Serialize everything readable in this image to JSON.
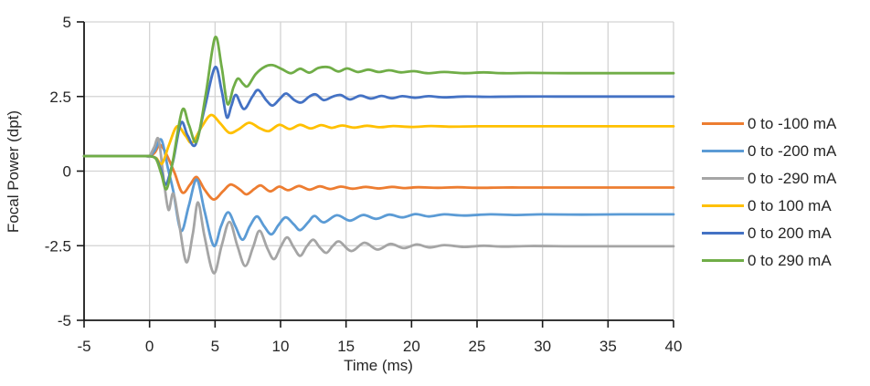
{
  "styles": {
    "background": "#ffffff",
    "grid_color": "#d3d3d3",
    "axis_color": "#1a1a1a",
    "text_color": "#262626"
  },
  "chart_data": {
    "type": "line",
    "title": "",
    "xlabel": "Time (ms)",
    "ylabel": "Focal Power (dpt)",
    "xlim": [
      -5,
      40
    ],
    "ylim": [
      -5,
      5
    ],
    "xticks": [
      -5,
      0,
      5,
      10,
      15,
      20,
      25,
      30,
      35,
      40
    ],
    "xtick_labels": [
      "-5",
      "0",
      "5",
      "10",
      "15",
      "20",
      "25",
      "30",
      "35",
      "40"
    ],
    "yticks": [
      5,
      2.5,
      0,
      -2.5,
      -5
    ],
    "ytick_labels": [
      "5",
      "2.5",
      "0",
      "-2.5",
      "-5"
    ],
    "grid": true,
    "legend_position": "right",
    "initial_value_dpt": 0.5,
    "step_time_ms": 0,
    "series": [
      {
        "name": "0 to -100 mA",
        "color": "#ED7D31",
        "final_value_dpt": -0.55,
        "points": [
          [
            -5,
            0.5
          ],
          [
            -2,
            0.5
          ],
          [
            -0.3,
            0.5
          ],
          [
            0,
            0.5
          ],
          [
            0.4,
            0.62
          ],
          [
            0.8,
            0.88
          ],
          [
            1.3,
            0.55
          ],
          [
            1.9,
            -0.05
          ],
          [
            2.5,
            -0.72
          ],
          [
            3.1,
            -0.45
          ],
          [
            3.6,
            -0.2
          ],
          [
            4.2,
            -0.62
          ],
          [
            4.9,
            -0.95
          ],
          [
            5.6,
            -0.68
          ],
          [
            6.2,
            -0.45
          ],
          [
            6.9,
            -0.62
          ],
          [
            7.4,
            -0.78
          ],
          [
            8,
            -0.6
          ],
          [
            8.5,
            -0.48
          ],
          [
            9.2,
            -0.68
          ],
          [
            9.9,
            -0.52
          ],
          [
            10.6,
            -0.64
          ],
          [
            11.4,
            -0.5
          ],
          [
            12.2,
            -0.62
          ],
          [
            13,
            -0.51
          ],
          [
            13.8,
            -0.6
          ],
          [
            14.6,
            -0.52
          ],
          [
            15.5,
            -0.59
          ],
          [
            16.5,
            -0.53
          ],
          [
            17.5,
            -0.58
          ],
          [
            18.5,
            -0.53
          ],
          [
            19.5,
            -0.57
          ],
          [
            20.5,
            -0.54
          ],
          [
            22,
            -0.56
          ],
          [
            23.5,
            -0.54
          ],
          [
            25,
            -0.56
          ],
          [
            27,
            -0.55
          ],
          [
            29,
            -0.55
          ],
          [
            32,
            -0.55
          ],
          [
            35,
            -0.55
          ],
          [
            38,
            -0.55
          ],
          [
            40,
            -0.55
          ]
        ]
      },
      {
        "name": "0 to -200 mA",
        "color": "#5B9BD5",
        "final_value_dpt": -1.45,
        "points": [
          [
            -5,
            0.5
          ],
          [
            -2,
            0.5
          ],
          [
            -0.3,
            0.5
          ],
          [
            0,
            0.5
          ],
          [
            0.4,
            0.7
          ],
          [
            0.9,
            1.05
          ],
          [
            1.4,
            0.1
          ],
          [
            1.8,
            -0.65
          ],
          [
            2.4,
            -2
          ],
          [
            3,
            -1.15
          ],
          [
            3.6,
            -0.28
          ],
          [
            4.2,
            -1.35
          ],
          [
            4.9,
            -2.5
          ],
          [
            5.45,
            -1.85
          ],
          [
            6,
            -1.38
          ],
          [
            6.55,
            -1.85
          ],
          [
            7.1,
            -2.3
          ],
          [
            7.65,
            -1.85
          ],
          [
            8.2,
            -1.52
          ],
          [
            8.75,
            -1.85
          ],
          [
            9.3,
            -2.12
          ],
          [
            9.85,
            -1.8
          ],
          [
            10.4,
            -1.55
          ],
          [
            11,
            -1.78
          ],
          [
            11.5,
            -1.98
          ],
          [
            12.1,
            -1.72
          ],
          [
            12.6,
            -1.5
          ],
          [
            13.3,
            -1.72
          ],
          [
            14.3,
            -1.48
          ],
          [
            15.3,
            -1.66
          ],
          [
            16.3,
            -1.47
          ],
          [
            17.3,
            -1.6
          ],
          [
            18.3,
            -1.46
          ],
          [
            19.3,
            -1.55
          ],
          [
            20.3,
            -1.44
          ],
          [
            21.3,
            -1.52
          ],
          [
            22.5,
            -1.45
          ],
          [
            24,
            -1.49
          ],
          [
            26,
            -1.45
          ],
          [
            28,
            -1.47
          ],
          [
            30,
            -1.45
          ],
          [
            33,
            -1.46
          ],
          [
            36,
            -1.45
          ],
          [
            40,
            -1.45
          ]
        ]
      },
      {
        "name": "0 to -290 mA",
        "color": "#A5A5A5",
        "final_value_dpt": -2.52,
        "points": [
          [
            -5,
            0.5
          ],
          [
            -2,
            0.5
          ],
          [
            -0.3,
            0.5
          ],
          [
            0,
            0.5
          ],
          [
            0.35,
            0.8
          ],
          [
            0.7,
            1.05
          ],
          [
            1.1,
            -0.35
          ],
          [
            1.45,
            -1.3
          ],
          [
            1.8,
            -0.75
          ],
          [
            2.2,
            -1.6
          ],
          [
            2.8,
            -3.05
          ],
          [
            3.3,
            -2.1
          ],
          [
            3.7,
            -1.05
          ],
          [
            4.2,
            -2.2
          ],
          [
            4.9,
            -3.42
          ],
          [
            5.5,
            -2.5
          ],
          [
            6.1,
            -1.7
          ],
          [
            6.7,
            -2.5
          ],
          [
            7.3,
            -3.18
          ],
          [
            7.9,
            -2.55
          ],
          [
            8.4,
            -2
          ],
          [
            9,
            -2.6
          ],
          [
            9.5,
            -2.95
          ],
          [
            10,
            -2.55
          ],
          [
            10.5,
            -2.22
          ],
          [
            11,
            -2.55
          ],
          [
            11.5,
            -2.84
          ],
          [
            12,
            -2.52
          ],
          [
            12.5,
            -2.3
          ],
          [
            13,
            -2.56
          ],
          [
            13.5,
            -2.74
          ],
          [
            14,
            -2.5
          ],
          [
            14.5,
            -2.36
          ],
          [
            15.4,
            -2.68
          ],
          [
            16.4,
            -2.4
          ],
          [
            17.4,
            -2.63
          ],
          [
            18.4,
            -2.44
          ],
          [
            19.4,
            -2.58
          ],
          [
            20.4,
            -2.46
          ],
          [
            21.4,
            -2.56
          ],
          [
            22.5,
            -2.48
          ],
          [
            24,
            -2.54
          ],
          [
            25.5,
            -2.5
          ],
          [
            27,
            -2.53
          ],
          [
            29,
            -2.51
          ],
          [
            32,
            -2.52
          ],
          [
            35,
            -2.52
          ],
          [
            38,
            -2.52
          ],
          [
            40,
            -2.52
          ]
        ]
      },
      {
        "name": "0 to 100 mA",
        "color": "#FFC000",
        "final_value_dpt": 1.5,
        "points": [
          [
            -5,
            0.5
          ],
          [
            -2,
            0.5
          ],
          [
            -0.3,
            0.5
          ],
          [
            0,
            0.5
          ],
          [
            0.5,
            0.44
          ],
          [
            0.95,
            0.25
          ],
          [
            1.5,
            0.9
          ],
          [
            2.1,
            1.5
          ],
          [
            2.75,
            1.18
          ],
          [
            3.25,
            0.95
          ],
          [
            4,
            1.5
          ],
          [
            4.7,
            1.88
          ],
          [
            5.4,
            1.6
          ],
          [
            6.1,
            1.28
          ],
          [
            6.8,
            1.4
          ],
          [
            7.6,
            1.62
          ],
          [
            8.4,
            1.44
          ],
          [
            9.1,
            1.34
          ],
          [
            9.9,
            1.55
          ],
          [
            10.7,
            1.41
          ],
          [
            11.5,
            1.55
          ],
          [
            12.3,
            1.43
          ],
          [
            13.1,
            1.54
          ],
          [
            13.9,
            1.45
          ],
          [
            14.7,
            1.53
          ],
          [
            15.6,
            1.46
          ],
          [
            16.6,
            1.52
          ],
          [
            17.6,
            1.47
          ],
          [
            18.6,
            1.51
          ],
          [
            20,
            1.48
          ],
          [
            21.5,
            1.51
          ],
          [
            23,
            1.49
          ],
          [
            25,
            1.5
          ],
          [
            28,
            1.5
          ],
          [
            31,
            1.5
          ],
          [
            34,
            1.5
          ],
          [
            37,
            1.5
          ],
          [
            40,
            1.5
          ]
        ]
      },
      {
        "name": "0 to 200 mA",
        "color": "#4472C4",
        "final_value_dpt": 2.5,
        "points": [
          [
            -5,
            0.5
          ],
          [
            -2,
            0.5
          ],
          [
            -0.3,
            0.5
          ],
          [
            0,
            0.5
          ],
          [
            0.5,
            0.42
          ],
          [
            0.9,
            0
          ],
          [
            1.25,
            -0.45
          ],
          [
            1.8,
            0.35
          ],
          [
            2.4,
            1.62
          ],
          [
            2.9,
            1.2
          ],
          [
            3.5,
            0.88
          ],
          [
            4.2,
            2.1
          ],
          [
            5,
            3.48
          ],
          [
            5.5,
            2.7
          ],
          [
            5.9,
            1.8
          ],
          [
            6.25,
            2.2
          ],
          [
            6.6,
            2.55
          ],
          [
            7.2,
            2.08
          ],
          [
            7.85,
            2.5
          ],
          [
            8.3,
            2.72
          ],
          [
            8.9,
            2.38
          ],
          [
            9.4,
            2.2
          ],
          [
            10,
            2.45
          ],
          [
            10.45,
            2.6
          ],
          [
            11.05,
            2.38
          ],
          [
            11.6,
            2.3
          ],
          [
            12.2,
            2.5
          ],
          [
            12.7,
            2.57
          ],
          [
            13.3,
            2.38
          ],
          [
            14,
            2.5
          ],
          [
            14.6,
            2.55
          ],
          [
            15.3,
            2.4
          ],
          [
            16.1,
            2.53
          ],
          [
            16.9,
            2.43
          ],
          [
            17.7,
            2.52
          ],
          [
            18.5,
            2.44
          ],
          [
            19.3,
            2.51
          ],
          [
            20.3,
            2.46
          ],
          [
            21.3,
            2.51
          ],
          [
            22.5,
            2.47
          ],
          [
            24,
            2.5
          ],
          [
            26,
            2.49
          ],
          [
            28,
            2.5
          ],
          [
            31,
            2.5
          ],
          [
            34,
            2.5
          ],
          [
            37,
            2.5
          ],
          [
            40,
            2.5
          ]
        ]
      },
      {
        "name": "0 to 290 mA",
        "color": "#70AD47",
        "final_value_dpt": 3.28,
        "points": [
          [
            -5,
            0.5
          ],
          [
            -2,
            0.5
          ],
          [
            -0.3,
            0.5
          ],
          [
            0,
            0.5
          ],
          [
            0.5,
            0.4
          ],
          [
            0.9,
            -0.1
          ],
          [
            1.3,
            -0.6
          ],
          [
            1.8,
            0.4
          ],
          [
            2.5,
            2.05
          ],
          [
            3,
            1.55
          ],
          [
            3.6,
            1
          ],
          [
            4.3,
            2.6
          ],
          [
            5,
            4.48
          ],
          [
            5.5,
            3.5
          ],
          [
            5.95,
            2.25
          ],
          [
            6.4,
            2.8
          ],
          [
            6.75,
            3.1
          ],
          [
            7.15,
            2.92
          ],
          [
            7.5,
            2.85
          ],
          [
            8.1,
            3.25
          ],
          [
            8.8,
            3.5
          ],
          [
            9.4,
            3.55
          ],
          [
            10.1,
            3.42
          ],
          [
            10.8,
            3.28
          ],
          [
            11.5,
            3.43
          ],
          [
            12.2,
            3.3
          ],
          [
            12.9,
            3.46
          ],
          [
            13.7,
            3.48
          ],
          [
            14.4,
            3.34
          ],
          [
            15.1,
            3.44
          ],
          [
            15.9,
            3.32
          ],
          [
            16.7,
            3.4
          ],
          [
            17.5,
            3.32
          ],
          [
            18.3,
            3.38
          ],
          [
            19.2,
            3.31
          ],
          [
            20.2,
            3.35
          ],
          [
            21.2,
            3.28
          ],
          [
            22.5,
            3.32
          ],
          [
            24,
            3.28
          ],
          [
            25.5,
            3.31
          ],
          [
            27,
            3.28
          ],
          [
            29,
            3.29
          ],
          [
            32,
            3.28
          ],
          [
            35,
            3.28
          ],
          [
            38,
            3.28
          ],
          [
            40,
            3.28
          ]
        ]
      }
    ]
  }
}
